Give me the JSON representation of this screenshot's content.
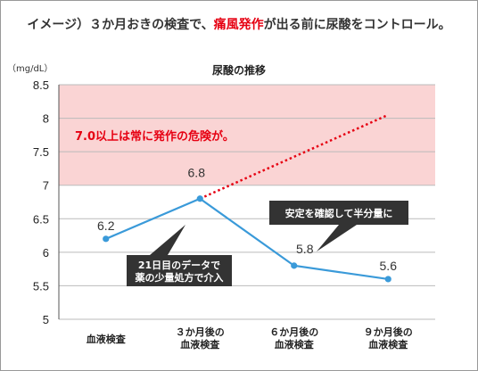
{
  "page_title": {
    "prefix": "イメージ）３か月おきの検査で、",
    "highlight": "痛風発作",
    "suffix": "が出る前に尿酸をコントロール。"
  },
  "colors": {
    "line": "#3a9ad9",
    "projection": "#e60012",
    "danger_zone": "#fad4d4",
    "callout": "#333333",
    "grid": "#bbbbbb"
  },
  "annotations": {
    "danger_zone_label": "7.0以上は常に発作の危険が。",
    "callout_intervention": [
      "21日目のデータで",
      "薬の少量処方で介入"
    ],
    "callout_halving": "安定を確認して半分量に"
  },
  "chart_data": {
    "type": "line",
    "title": "尿酸の推移",
    "unit": "（mg/dL）",
    "categories": [
      [
        "血液検査"
      ],
      [
        "３か月後の",
        "血液検査"
      ],
      [
        "６か月後の",
        "血液検査"
      ],
      [
        "９か月後の",
        "血液検査"
      ]
    ],
    "values": [
      6.2,
      6.8,
      5.8,
      5.6
    ],
    "value_labels": [
      "6.2",
      "6.8",
      "5.8",
      "5.6"
    ],
    "projection": [
      {
        "x": 1,
        "y": 6.8
      },
      {
        "x": 3,
        "y": 8.05
      }
    ],
    "danger_zone": [
      7,
      8.5
    ],
    "ylim": [
      5,
      8.5
    ],
    "yticks": [
      "5",
      "5.5",
      "6",
      "6.5",
      "7",
      "7.5",
      "8",
      "8.5"
    ],
    "grid": true
  }
}
